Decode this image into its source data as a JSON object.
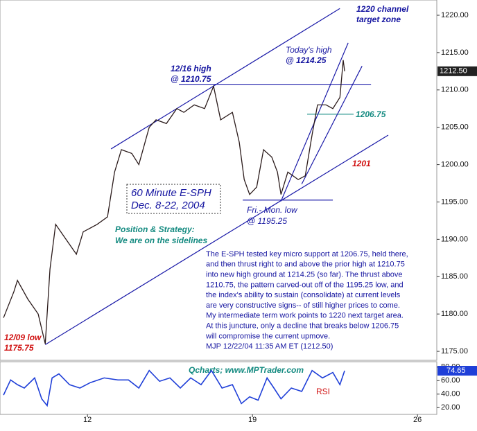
{
  "chart_data": [
    {
      "type": "line",
      "title": "60 Minute E-SPH",
      "subtitle": "Dec. 8-22, 2004",
      "x": [
        8.44,
        8.88,
        9.03,
        9.47,
        9.91,
        10.21,
        10.41,
        10.65,
        11.09,
        11.53,
        11.82,
        12.41,
        12.85,
        13.15,
        13.44,
        13.88,
        14.18,
        14.62,
        14.91,
        15.35,
        15.79,
        16.09,
        16.53,
        16.97,
        17.35,
        17.65,
        18.15,
        18.44,
        18.65,
        18.88,
        19.18,
        19.47,
        19.82,
        20.06,
        20.21,
        20.5,
        20.94,
        21.24,
        21.53,
        21.76,
        22.12,
        22.41,
        22.71,
        22.85,
        22.91
      ],
      "series": [
        {
          "name": "E-SPH",
          "color": "#2a1a1a",
          "values": [
            1179.5,
            1183,
            1184.5,
            1182,
            1180,
            1176,
            1186,
            1192,
            1190,
            1188,
            1191,
            1192,
            1193,
            1199,
            1202,
            1201.5,
            1200,
            1205,
            1206,
            1205.5,
            1207.5,
            1207,
            1208,
            1207.5,
            1210.5,
            1206,
            1207,
            1203,
            1198,
            1196,
            1197,
            1202,
            1201,
            1199,
            1196,
            1199,
            1198,
            1198.5,
            1204,
            1208,
            1208,
            1207.5,
            1209,
            1214,
            1212.5
          ]
        }
      ],
      "xlim": [
        8.29,
        26.82
      ],
      "xticks": [
        12,
        19,
        26
      ],
      "ylim": [
        1173.8,
        1222.04
      ],
      "yticks": [
        {
          "value": 1175,
          "label": "1175.00"
        },
        {
          "value": 1180,
          "label": "1180.00"
        },
        {
          "value": 1185,
          "label": "1185.00"
        },
        {
          "value": 1190,
          "label": "1190.00"
        },
        {
          "value": 1195,
          "label": "1195.00"
        },
        {
          "value": 1200,
          "label": "1200.00"
        },
        {
          "value": 1205,
          "label": "1205.00"
        },
        {
          "value": 1210,
          "label": "1210.00"
        },
        {
          "value": 1215,
          "label": "1215.00"
        },
        {
          "value": 1220,
          "label": "1220.00"
        }
      ],
      "last_price": {
        "value": 1212.5,
        "label": "1212.50"
      },
      "trendlines": [
        {
          "color": "#1a1aa8",
          "x": [
            13.0,
            22.71
          ],
          "y": [
            1202.1,
            1220.9
          ]
        },
        {
          "color": "#1a1aa8",
          "x": [
            10.21,
            24.76
          ],
          "y": [
            1175.9,
            1203.95
          ]
        },
        {
          "color": "#1a1aa8",
          "x": [
            15.88,
            24.03
          ],
          "y": [
            1210.75,
            1210.75
          ]
        },
        {
          "color": "#1a1aa8",
          "x": [
            18.59,
            22.41
          ],
          "y": [
            1195.25,
            1195.25
          ]
        },
        {
          "color": "#138a80",
          "x": [
            21.32,
            23.29
          ],
          "y": [
            1206.75,
            1206.75
          ]
        },
        {
          "color": "#1a1aa8",
          "x": [
            20.21,
            23.06
          ],
          "y": [
            1195.1,
            1216.3
          ]
        },
        {
          "color": "#1a1aa8",
          "x": [
            21.09,
            23.65
          ],
          "y": [
            1197.4,
            1213.2
          ]
        }
      ],
      "annotations": {
        "target": [
          "1220 channel",
          "target zone"
        ],
        "today_high": [
          "Today's high",
          "@ 1214.25"
        ],
        "high_1216": [
          "12/16 high",
          "@ 1210.75"
        ],
        "support": "1206.75",
        "level_1201": "1201",
        "low_fri_mon": [
          "Fri.- Mon. low",
          "@ 1195.25"
        ],
        "strategy": [
          "Position & Strategy:",
          "We are on the sidelines"
        ],
        "low_1209": [
          "12/09 low",
          "1175.75"
        ],
        "commentary": [
          "The E-SPH tested key micro support at 1206.75, held there,",
          "and then thrust right to and above the prior high at 1210.75",
          "into new high ground at 1214.25 (so far). The thrust above",
          "1210.75, the pattern carved-out off of the 1195.25 low, and",
          "the index's ability to sustain (consolidate) at current levels",
          "are very constructive signs-- of still higher prices to come.",
          "My intermediate term work points to 1220 next target area.",
          "At this juncture, only a decline that breaks below 1206.75",
          "will compromise the current upmove.",
          "MJP 12/22/04  11:35 AM  ET (1212.50)"
        ]
      }
    },
    {
      "type": "line",
      "title": "Qcharts; www.MPTrader.com",
      "x": [
        8.44,
        8.74,
        9.03,
        9.32,
        9.76,
        10.06,
        10.29,
        10.5,
        10.79,
        11.24,
        11.68,
        12.12,
        12.71,
        13.29,
        13.74,
        14.18,
        14.62,
        15.06,
        15.5,
        15.94,
        16.38,
        16.82,
        17.26,
        17.71,
        18.15,
        18.53,
        18.88,
        19.24,
        19.62,
        19.91,
        20.21,
        20.65,
        21.09,
        21.53,
        21.97,
        22.41,
        22.71,
        22.91
      ],
      "series": [
        {
          "name": "RSI",
          "color": "#1f3fd8",
          "values": [
            38.6,
            61,
            54,
            49,
            64,
            33,
            23,
            64,
            70,
            54,
            49,
            57,
            64,
            61,
            61,
            49,
            75,
            59,
            64,
            49,
            64,
            54,
            75,
            49,
            54,
            26,
            36,
            31,
            64,
            49,
            33,
            49,
            44,
            75,
            64,
            72,
            54,
            74.65
          ]
        }
      ],
      "xlim": [
        8.29,
        26.82
      ],
      "ylim": [
        10,
        88
      ],
      "yticks": [
        {
          "value": 20,
          "label": "20.00"
        },
        {
          "value": 40,
          "label": "40.00"
        },
        {
          "value": 60,
          "label": "60.00"
        },
        {
          "value": 80,
          "label": "80.00"
        }
      ],
      "last_value": 74.65
    }
  ]
}
